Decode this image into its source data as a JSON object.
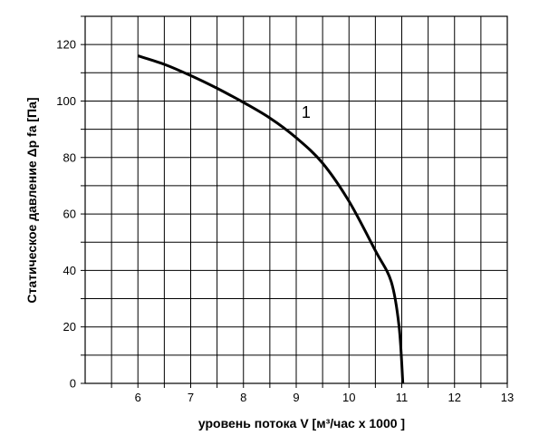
{
  "chart_data": {
    "type": "line",
    "title": "",
    "xlabel": "уровень потока  V [м³/час x 1000 ]",
    "ylabel": "Статическое давление  Δp fa [Па]",
    "xlim": [
      5,
      13
    ],
    "ylim": [
      0,
      130
    ],
    "xticks": [
      "6",
      "7",
      "8",
      "9",
      "10",
      "11",
      "12",
      "13"
    ],
    "yticks": [
      "0",
      "20",
      "40",
      "60",
      "80",
      "100",
      "120"
    ],
    "grid": true,
    "series": [
      {
        "name": "1",
        "x": [
          6.0,
          6.5,
          7.0,
          7.5,
          8.0,
          8.5,
          9.0,
          9.5,
          10.0,
          10.5,
          10.8,
          10.95,
          11.02
        ],
        "y": [
          116,
          113,
          109,
          104.5,
          99.5,
          94,
          87,
          78,
          64.5,
          47,
          36,
          20,
          0
        ]
      }
    ]
  }
}
